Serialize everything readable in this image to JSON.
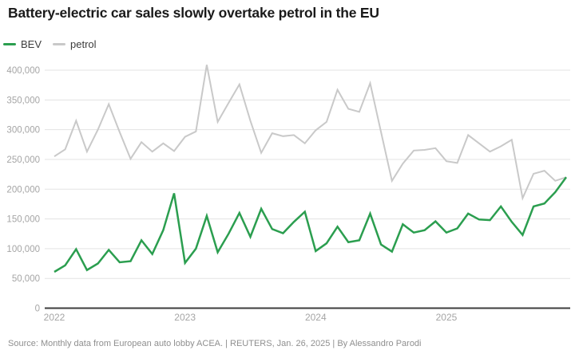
{
  "title": "Battery-electric car sales slowly overtake petrol in the EU",
  "legend": {
    "items": [
      {
        "label": "BEV",
        "color": "#2B9E4F"
      },
      {
        "label": "petrol",
        "color": "#C9C9C9"
      }
    ]
  },
  "source": "Source: Monthly data from European auto lobby ACEA. | REUTERS, Jan. 26, 2025 | By Alessandro Parodi",
  "colors": {
    "bev_line": "#2B9E4F",
    "petrol_line": "#C9C9C9",
    "gridline": "#E3E3E3",
    "zero_axis": "#3D3D3D",
    "axis_text": "#A5A5A5"
  },
  "chart_data": {
    "type": "line",
    "title": "Battery-electric car sales slowly overtake petrol in the EU",
    "x_unit": "month",
    "x_start": "2022-01",
    "x_end": "2025-12",
    "x_tick_labels": [
      "2022",
      "2023",
      "2024",
      "2025"
    ],
    "y_ticks": [
      0,
      50000,
      100000,
      150000,
      200000,
      250000,
      300000,
      350000,
      400000
    ],
    "y_tick_labels": [
      "0",
      "50,000",
      "100,000",
      "150,000",
      "200,000",
      "250,000",
      "300,000",
      "350,000",
      "400,000"
    ],
    "ylim": [
      0,
      412000
    ],
    "grid": "horizontal",
    "legend_position": "top-left",
    "series": [
      {
        "name": "petrol",
        "color": "#C9C9C9",
        "values": [
          255000,
          267000,
          315000,
          263000,
          300000,
          343000,
          296000,
          251000,
          279000,
          263000,
          277000,
          264000,
          288000,
          297000,
          409000,
          313000,
          345000,
          376000,
          315000,
          261000,
          294000,
          289000,
          291000,
          277000,
          299000,
          313000,
          367000,
          335000,
          330000,
          378000,
          296000,
          214000,
          243000,
          265000,
          266000,
          269000,
          247000,
          244000,
          291000,
          277000,
          263000,
          272000,
          283000,
          185000,
          226000,
          231000,
          214000,
          220000
        ]
      },
      {
        "name": "BEV",
        "color": "#2B9E4F",
        "values": [
          61000,
          72000,
          99000,
          64000,
          75000,
          98000,
          77000,
          79000,
          114000,
          91000,
          131000,
          193000,
          76000,
          100000,
          155000,
          94000,
          125000,
          160000,
          120000,
          167000,
          133000,
          126000,
          145000,
          162000,
          96000,
          109000,
          137000,
          111000,
          114000,
          159000,
          107000,
          95000,
          141000,
          127000,
          131000,
          146000,
          127000,
          134000,
          159000,
          149000,
          148000,
          171000,
          145000,
          123000,
          171000,
          176000,
          195000,
          220000
        ]
      }
    ]
  }
}
